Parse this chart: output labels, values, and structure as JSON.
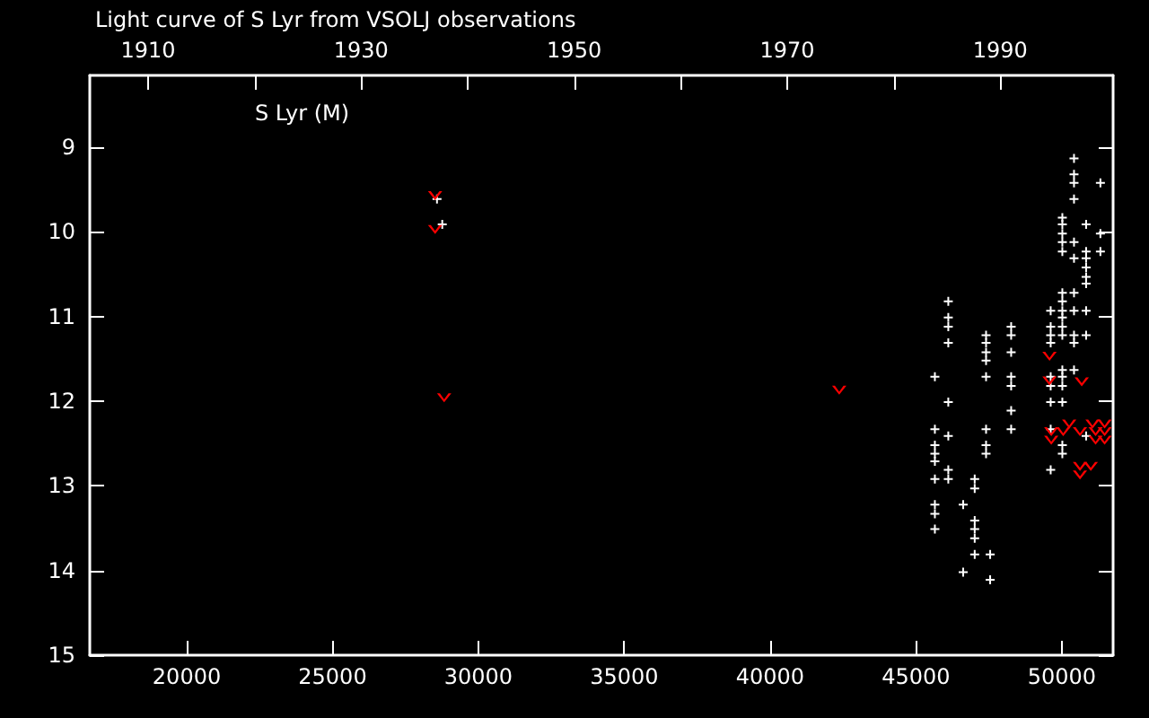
{
  "chart_data": {
    "type": "scatter",
    "title": "Light curve of S Lyr from VSOLJ observations",
    "annotations": [
      "S Lyr (M)"
    ],
    "xlim": [
      16675,
      51760
    ],
    "xticks": [
      20000,
      25000,
      30000,
      35000,
      40000,
      45000,
      50000
    ],
    "x2lim": [
      1904.53,
      2000.59
    ],
    "x2ticks": [
      1910,
      {
        "value": 1920,
        "label": null
      },
      1930,
      {
        "value": 1940,
        "label": null
      },
      1950,
      {
        "value": 1960,
        "label": null
      },
      1970,
      {
        "value": 1980,
        "label": null
      },
      1990
    ],
    "ylim": [
      15,
      8.15
    ],
    "yticks": [
      9,
      10,
      11,
      12,
      13,
      14,
      15
    ],
    "series": [
      {
        "color": "#ffffff",
        "marker": "cross",
        "x": [
          28580,
          28760,
          45650,
          45650,
          45650,
          45650,
          45650,
          45650,
          45650,
          45650,
          45650,
          46110,
          46110,
          46110,
          46110,
          46110,
          46110,
          46110,
          46110,
          46620,
          46620,
          47015,
          47015,
          47015,
          47015,
          47015,
          47015,
          47405,
          47405,
          47405,
          47405,
          47405,
          47405,
          47405,
          47405,
          47545,
          47545,
          48265,
          48265,
          48265,
          48265,
          48265,
          48265,
          48265,
          49620,
          49620,
          49620,
          49620,
          49620,
          49620,
          49620,
          49620,
          49620,
          50020,
          50020,
          50020,
          50020,
          50020,
          50020,
          50020,
          50020,
          50020,
          50020,
          50020,
          50020,
          50020,
          50020,
          50020,
          50020,
          50020,
          50420,
          50420,
          50420,
          50420,
          50420,
          50420,
          50420,
          50420,
          50420,
          50420,
          50420,
          50835,
          50835,
          50835,
          50835,
          50835,
          50835,
          50835,
          50835,
          50835,
          51325,
          51325,
          51325
        ],
        "values": [
          9.61,
          9.91,
          11.71,
          12.33,
          12.52,
          12.62,
          12.71,
          12.92,
          13.22,
          13.33,
          13.51,
          10.82,
          11.01,
          11.12,
          11.31,
          12.01,
          12.41,
          12.81,
          12.92,
          13.22,
          14.02,
          12.92,
          13.03,
          13.41,
          13.51,
          13.62,
          13.81,
          11.22,
          11.31,
          11.42,
          11.52,
          11.71,
          12.33,
          12.52,
          12.62,
          13.81,
          14.11,
          11.12,
          11.22,
          11.42,
          11.71,
          11.82,
          12.11,
          12.33,
          10.93,
          11.12,
          11.22,
          11.31,
          11.71,
          11.82,
          12.01,
          12.33,
          12.81,
          9.83,
          9.91,
          10.02,
          10.12,
          10.23,
          10.72,
          10.82,
          10.93,
          11.01,
          11.12,
          11.22,
          11.63,
          11.71,
          11.82,
          12.01,
          12.52,
          12.62,
          9.13,
          9.32,
          9.42,
          9.61,
          10.12,
          10.31,
          10.72,
          10.93,
          11.22,
          11.31,
          11.63,
          9.91,
          10.23,
          10.31,
          10.42,
          10.53,
          10.61,
          10.93,
          11.22,
          12.41,
          9.42,
          10.02,
          10.23
        ]
      },
      {
        "color": "#ff0000",
        "marker": "triangle",
        "x": [
          28515,
          28515,
          28825,
          42370,
          49580,
          49580,
          50685,
          50255,
          49640,
          50050,
          50625,
          51055,
          51470,
          51160,
          51470,
          49640,
          51160,
          51470,
          50625,
          50995,
          50625
        ],
        "values": [
          9.57,
          9.97,
          11.96,
          11.87,
          11.47,
          11.76,
          11.77,
          12.27,
          12.36,
          12.36,
          12.36,
          12.27,
          12.27,
          12.36,
          12.36,
          12.46,
          12.46,
          12.46,
          12.77,
          12.77,
          12.87
        ]
      }
    ]
  }
}
